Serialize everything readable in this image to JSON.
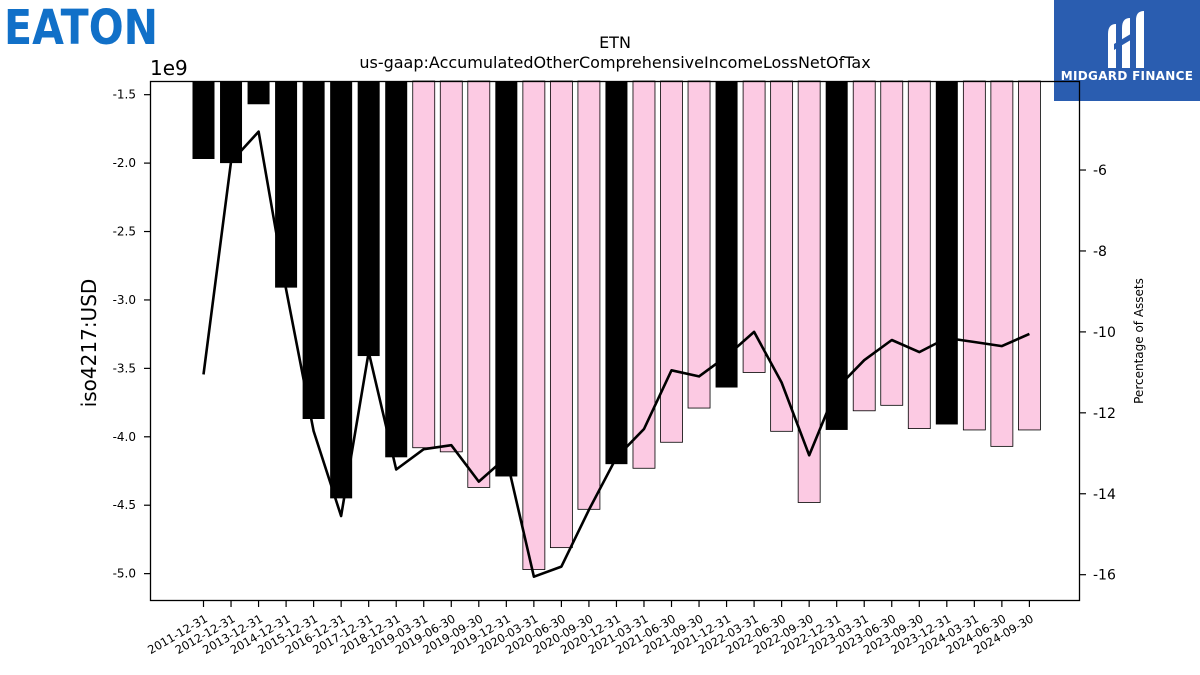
{
  "logos": {
    "left": "EATON",
    "right": "MIDGARD FINANCE"
  },
  "colors": {
    "eaton_blue": "#1170c8",
    "midgard_bg": "#2a5db0",
    "bar_actual": "#000000",
    "bar_estimate": "#fccae3",
    "line": "#000000"
  },
  "chart_data": {
    "type": "bar",
    "title": "ETN",
    "subtitle": "us-gaap:AccumulatedOtherComprehensiveIncomeLossNetOfTax",
    "ylabel": "iso4217:USD",
    "y_offset_label": "1e9",
    "y2label": "Percentage of Assets",
    "grid": false,
    "ylim": [
      -5.2,
      -1.4
    ],
    "y2lim": [
      -16.65,
      -3.8
    ],
    "yticks": [
      "-1.5",
      "-2.0",
      "-2.5",
      "-3.0",
      "-3.5",
      "-4.0",
      "-4.5",
      "-5.0"
    ],
    "y2ticks": [
      "-6",
      "-8",
      "-10",
      "-12",
      "-14",
      "-16"
    ],
    "categories": [
      "2011-12-31",
      "2012-12-31",
      "2013-12-31",
      "2014-12-31",
      "2015-12-31",
      "2016-12-31",
      "2017-12-31",
      "2018-12-31",
      "2019-03-31",
      "2019-06-30",
      "2019-09-30",
      "2019-12-31",
      "2020-03-31",
      "2020-06-30",
      "2020-09-30",
      "2020-12-31",
      "2021-03-31",
      "2021-06-30",
      "2021-09-30",
      "2021-12-31",
      "2022-03-31",
      "2022-06-30",
      "2022-09-30",
      "2022-12-31",
      "2023-03-31",
      "2023-06-30",
      "2023-09-30",
      "2023-12-31",
      "2024-03-31",
      "2024-06-30",
      "2024-09-30"
    ],
    "series": [
      {
        "kind": "bar",
        "values": [
          -1.97,
          -2.0,
          -1.57,
          -2.91,
          -3.87,
          -4.45,
          -3.41,
          -4.15,
          -4.08,
          -4.11,
          -4.37,
          -4.29,
          -4.97,
          -4.81,
          -4.53,
          -4.2,
          -4.23,
          -4.04,
          -3.79,
          -3.64,
          -3.53,
          -3.96,
          -4.48,
          -3.95,
          -3.81,
          -3.77,
          -3.94,
          -3.91,
          -3.95,
          -4.07,
          -3.95
        ],
        "annual": [
          true,
          true,
          true,
          true,
          true,
          true,
          true,
          true,
          false,
          false,
          false,
          true,
          false,
          false,
          false,
          true,
          false,
          false,
          false,
          true,
          false,
          false,
          false,
          true,
          false,
          false,
          false,
          true,
          false,
          false,
          false
        ]
      },
      {
        "kind": "line",
        "axis": "right",
        "values": [
          -11.05,
          -5.8,
          -5.05,
          -8.95,
          -12.45,
          -14.55,
          -10.5,
          -13.4,
          -12.9,
          -12.8,
          -13.7,
          -13.1,
          -16.05,
          -15.8,
          -14.4,
          -13.1,
          -12.4,
          -10.95,
          -11.1,
          -10.6,
          -10.0,
          -11.25,
          -13.05,
          -11.4,
          -10.7,
          -10.2,
          -10.5,
          -10.15,
          -10.25,
          -10.35,
          -10.05
        ]
      }
    ]
  }
}
